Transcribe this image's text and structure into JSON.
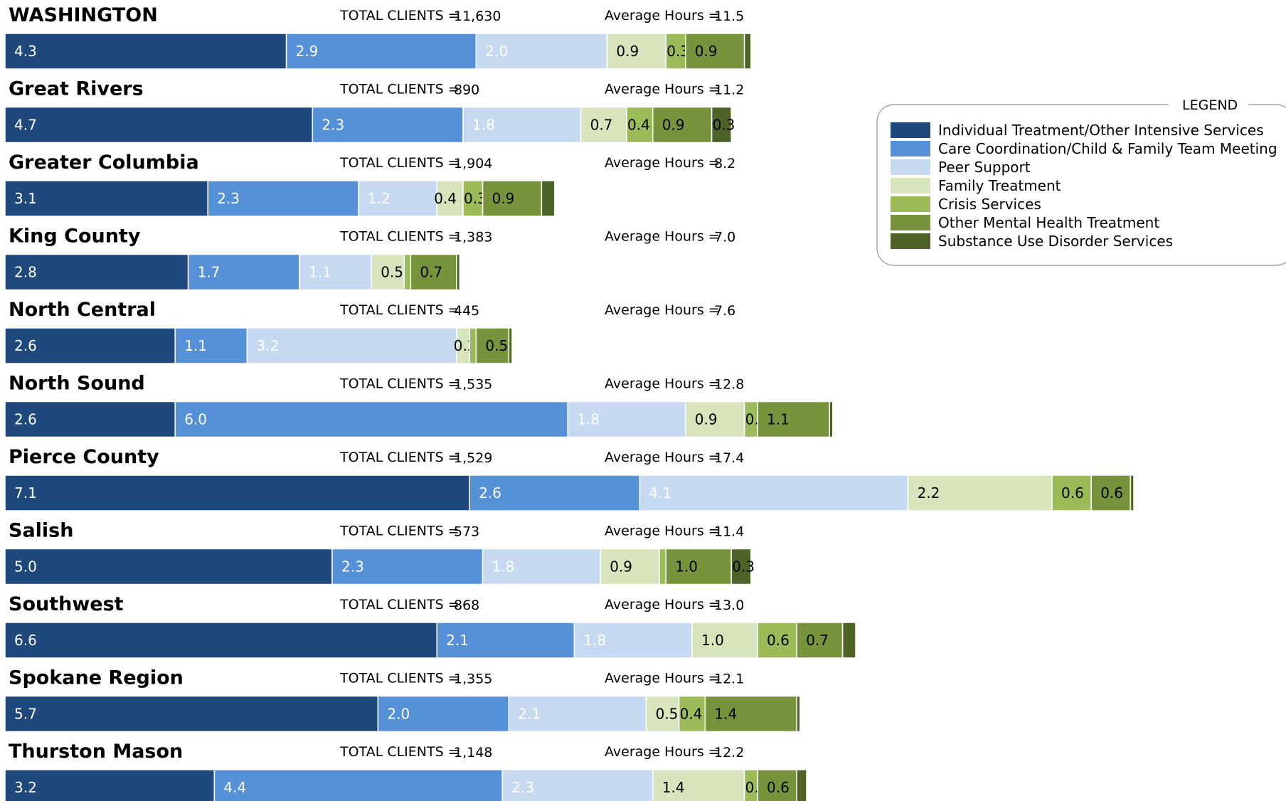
{
  "chart_data": {
    "type": "bar",
    "orientation": "horizontal",
    "stacked": true,
    "total_clients_label": "TOTAL CLIENTS =",
    "average_hours_label": "Average Hours =",
    "series": [
      {
        "name": "Individual Treatment/Other Intensive Services",
        "color": "#1f497d"
      },
      {
        "name": "Care Coordination/Child & Family Team Meeting",
        "color": "#5690d6"
      },
      {
        "name": "Peer Support",
        "color": "#c6d9f1"
      },
      {
        "name": "Family Treatment",
        "color": "#d8e4bc"
      },
      {
        "name": "Crisis Services",
        "color": "#9bbb59"
      },
      {
        "name": "Other Mental Health Treatment",
        "color": "#77933c"
      },
      {
        "name": "Substance Use Disorder Services",
        "color": "#4f6228"
      }
    ],
    "legend": {
      "title": "LEGEND",
      "position": "right"
    },
    "regions": [
      {
        "name": "WASHINGTON",
        "total_clients": "11,630",
        "average_hours": "11.5",
        "values": [
          4.3,
          2.9,
          2.0,
          0.9,
          0.3,
          0.9,
          0.1
        ],
        "labels": [
          "4.3",
          "2.9",
          "2.0",
          "0.9",
          "0.3",
          "0.9",
          ""
        ]
      },
      {
        "name": "Great Rivers",
        "total_clients": "890",
        "average_hours": "11.2",
        "values": [
          4.7,
          2.3,
          1.8,
          0.7,
          0.4,
          0.9,
          0.3
        ],
        "labels": [
          "4.7",
          "2.3",
          "1.8",
          "0.7",
          "0.4",
          "0.9",
          "0.3"
        ]
      },
      {
        "name": "Greater Columbia",
        "total_clients": "1,904",
        "average_hours": "8.2",
        "values": [
          3.1,
          2.3,
          1.2,
          0.4,
          0.3,
          0.9,
          0.2
        ],
        "labels": [
          "3.1",
          "2.3",
          "1.2",
          "0.4",
          "0.3",
          "0.9",
          ""
        ]
      },
      {
        "name": "King County",
        "total_clients": "1,383",
        "average_hours": "7.0",
        "values": [
          2.8,
          1.7,
          1.1,
          0.5,
          0.1,
          0.7,
          0.05
        ],
        "labels": [
          "2.8",
          "1.7",
          "1.1",
          "0.5",
          "",
          "0.7",
          ""
        ]
      },
      {
        "name": "North Central",
        "total_clients": "445",
        "average_hours": "7.6",
        "values": [
          2.6,
          1.1,
          3.2,
          0.2,
          0.1,
          0.5,
          0.05
        ],
        "labels": [
          "2.6",
          "1.1",
          "3.2",
          "0.2",
          "",
          "0.5",
          ""
        ]
      },
      {
        "name": "North Sound",
        "total_clients": "1,535",
        "average_hours": "12.8",
        "values": [
          2.6,
          6.0,
          1.8,
          0.9,
          0.2,
          1.1,
          0.05
        ],
        "labels": [
          "2.6",
          "6.0",
          "1.8",
          "0.9",
          "0.2",
          "1.1",
          ""
        ]
      },
      {
        "name": "Pierce County",
        "total_clients": "1,529",
        "average_hours": "17.4",
        "values": [
          7.1,
          2.6,
          4.1,
          2.2,
          0.6,
          0.6,
          0.05
        ],
        "labels": [
          "7.1",
          "2.6",
          "4.1",
          "2.2",
          "0.6",
          "0.6",
          ""
        ]
      },
      {
        "name": "Salish",
        "total_clients": "573",
        "average_hours": "11.4",
        "values": [
          5.0,
          2.3,
          1.8,
          0.9,
          0.1,
          1.0,
          0.3
        ],
        "labels": [
          "5.0",
          "2.3",
          "1.8",
          "0.9",
          "",
          "1.0",
          "0.3"
        ]
      },
      {
        "name": "Southwest",
        "total_clients": "868",
        "average_hours": "13.0",
        "values": [
          6.6,
          2.1,
          1.8,
          1.0,
          0.6,
          0.7,
          0.2
        ],
        "labels": [
          "6.6",
          "2.1",
          "1.8",
          "1.0",
          "0.6",
          "0.7",
          ""
        ]
      },
      {
        "name": "Spokane Region",
        "total_clients": "1,355",
        "average_hours": "12.1",
        "values": [
          5.7,
          2.0,
          2.1,
          0.5,
          0.4,
          1.4,
          0.05
        ],
        "labels": [
          "5.7",
          "2.0",
          "2.1",
          "0.5",
          "0.4",
          "1.4",
          ""
        ]
      },
      {
        "name": "Thurston Mason",
        "total_clients": "1,148",
        "average_hours": "12.2",
        "values": [
          3.2,
          4.4,
          2.3,
          1.4,
          0.2,
          0.6,
          0.15
        ],
        "labels": [
          "3.2",
          "4.4",
          "2.3",
          "1.4",
          "0.2",
          "0.6",
          ""
        ]
      }
    ]
  }
}
